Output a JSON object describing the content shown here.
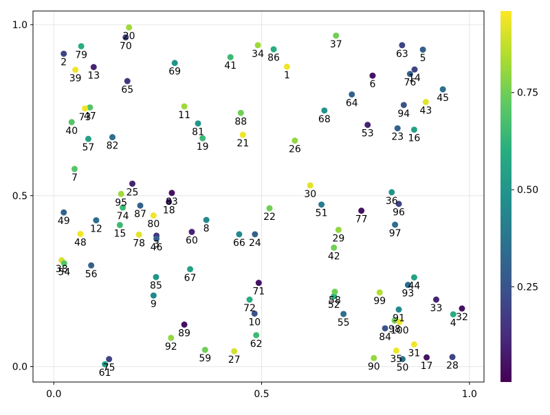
{
  "chart_data": {
    "type": "scatter",
    "title": "",
    "xlabel": "",
    "ylabel": "",
    "xlim": [
      -0.05,
      1.035
    ],
    "ylim": [
      -0.045,
      1.04
    ],
    "xticks": [
      {
        "value": 0.0,
        "label": "0.0"
      },
      {
        "value": 0.5,
        "label": "0.5"
      },
      {
        "value": 1.0,
        "label": "1.0"
      }
    ],
    "yticks": [
      {
        "value": 0.0,
        "label": "0.0"
      },
      {
        "value": 0.5,
        "label": "0.5"
      },
      {
        "value": 1.0,
        "label": "1.0"
      }
    ],
    "grid": true,
    "colormap": "viridis",
    "colorbar": {
      "range": [
        0.005,
        0.96
      ],
      "ticks": [
        {
          "value": 0.25,
          "label": "0.25"
        },
        {
          "value": 0.5,
          "label": "0.50"
        },
        {
          "value": 0.75,
          "label": "0.75"
        }
      ]
    },
    "points": [
      {
        "label": "1",
        "x": 0.561,
        "y": 0.877,
        "c": 0.94
      },
      {
        "label": "2",
        "x": 0.024,
        "y": 0.915,
        "c": 0.2
      },
      {
        "label": "3",
        "x": 0.247,
        "y": 0.383,
        "c": 0.15
      },
      {
        "label": "4",
        "x": 0.961,
        "y": 0.153,
        "c": 0.6
      },
      {
        "label": "5",
        "x": 0.888,
        "y": 0.927,
        "c": 0.3
      },
      {
        "label": "6",
        "x": 0.767,
        "y": 0.851,
        "c": 0.05
      },
      {
        "label": "7",
        "x": 0.05,
        "y": 0.578,
        "c": 0.7
      },
      {
        "label": "8",
        "x": 0.367,
        "y": 0.429,
        "c": 0.45
      },
      {
        "label": "9",
        "x": 0.24,
        "y": 0.208,
        "c": 0.45
      },
      {
        "label": "10",
        "x": 0.483,
        "y": 0.155,
        "c": 0.25
      },
      {
        "label": "11",
        "x": 0.314,
        "y": 0.761,
        "c": 0.82
      },
      {
        "label": "12",
        "x": 0.102,
        "y": 0.428,
        "c": 0.35
      },
      {
        "label": "13",
        "x": 0.096,
        "y": 0.876,
        "c": 0.1
      },
      {
        "label": "14",
        "x": 0.868,
        "y": 0.869,
        "c": 0.2
      },
      {
        "label": "15",
        "x": 0.159,
        "y": 0.414,
        "c": 0.65
      },
      {
        "label": "16",
        "x": 0.867,
        "y": 0.693,
        "c": 0.55
      },
      {
        "label": "17",
        "x": 0.897,
        "y": 0.027,
        "c": 0.05
      },
      {
        "label": "18",
        "x": 0.277,
        "y": 0.482,
        "c": 0.1
      },
      {
        "label": "19",
        "x": 0.358,
        "y": 0.668,
        "c": 0.65
      },
      {
        "label": "20",
        "x": 0.181,
        "y": 0.992,
        "c": 0.82
      },
      {
        "label": "21",
        "x": 0.455,
        "y": 0.678,
        "c": 0.94
      },
      {
        "label": "22",
        "x": 0.519,
        "y": 0.463,
        "c": 0.75
      },
      {
        "label": "23",
        "x": 0.827,
        "y": 0.697,
        "c": 0.3
      },
      {
        "label": "24",
        "x": 0.484,
        "y": 0.387,
        "c": 0.3
      },
      {
        "label": "25",
        "x": 0.189,
        "y": 0.535,
        "c": 0.1
      },
      {
        "label": "26",
        "x": 0.58,
        "y": 0.661,
        "c": 0.8
      },
      {
        "label": "27",
        "x": 0.434,
        "y": 0.045,
        "c": 0.9
      },
      {
        "label": "28",
        "x": 0.959,
        "y": 0.028,
        "c": 0.2
      },
      {
        "label": "29",
        "x": 0.685,
        "y": 0.4,
        "c": 0.8
      },
      {
        "label": "30",
        "x": 0.617,
        "y": 0.53,
        "c": 0.92
      },
      {
        "label": "31",
        "x": 0.867,
        "y": 0.065,
        "c": 0.94
      },
      {
        "label": "32",
        "x": 0.982,
        "y": 0.17,
        "c": 0.05
      },
      {
        "label": "33",
        "x": 0.92,
        "y": 0.196,
        "c": 0.1
      },
      {
        "label": "34",
        "x": 0.491,
        "y": 0.94,
        "c": 0.82
      },
      {
        "label": "35",
        "x": 0.824,
        "y": 0.047,
        "c": 0.94
      },
      {
        "label": "36",
        "x": 0.813,
        "y": 0.51,
        "c": 0.5
      },
      {
        "label": "37",
        "x": 0.679,
        "y": 0.968,
        "c": 0.75
      },
      {
        "label": "38",
        "x": 0.019,
        "y": 0.311,
        "c": 0.9
      },
      {
        "label": "39",
        "x": 0.052,
        "y": 0.868,
        "c": 0.94
      },
      {
        "label": "40",
        "x": 0.043,
        "y": 0.715,
        "c": 0.7
      },
      {
        "label": "41",
        "x": 0.425,
        "y": 0.905,
        "c": 0.65
      },
      {
        "label": "42",
        "x": 0.674,
        "y": 0.348,
        "c": 0.75
      },
      {
        "label": "43",
        "x": 0.895,
        "y": 0.774,
        "c": 0.92
      },
      {
        "label": "44",
        "x": 0.867,
        "y": 0.261,
        "c": 0.55
      },
      {
        "label": "45",
        "x": 0.936,
        "y": 0.811,
        "c": 0.35
      },
      {
        "label": "46",
        "x": 0.247,
        "y": 0.374,
        "c": 0.3
      },
      {
        "label": "47",
        "x": 0.087,
        "y": 0.758,
        "c": 0.7
      },
      {
        "label": "48",
        "x": 0.064,
        "y": 0.388,
        "c": 0.94
      },
      {
        "label": "49",
        "x": 0.024,
        "y": 0.451,
        "c": 0.3
      },
      {
        "label": "50",
        "x": 0.839,
        "y": 0.022,
        "c": 0.35
      },
      {
        "label": "51",
        "x": 0.644,
        "y": 0.474,
        "c": 0.4
      },
      {
        "label": "52",
        "x": 0.674,
        "y": 0.206,
        "c": 0.6
      },
      {
        "label": "53",
        "x": 0.755,
        "y": 0.707,
        "c": 0.1
      },
      {
        "label": "54",
        "x": 0.025,
        "y": 0.302,
        "c": 0.7
      },
      {
        "label": "55",
        "x": 0.697,
        "y": 0.154,
        "c": 0.35
      },
      {
        "label": "56",
        "x": 0.09,
        "y": 0.296,
        "c": 0.3
      },
      {
        "label": "57",
        "x": 0.083,
        "y": 0.666,
        "c": 0.55
      },
      {
        "label": "58",
        "x": 0.676,
        "y": 0.219,
        "c": 0.75
      },
      {
        "label": "59",
        "x": 0.364,
        "y": 0.049,
        "c": 0.75
      },
      {
        "label": "60",
        "x": 0.332,
        "y": 0.394,
        "c": 0.1
      },
      {
        "label": "61",
        "x": 0.123,
        "y": 0.007,
        "c": 0.55
      },
      {
        "label": "62",
        "x": 0.487,
        "y": 0.092,
        "c": 0.65
      },
      {
        "label": "63",
        "x": 0.838,
        "y": 0.94,
        "c": 0.2
      },
      {
        "label": "64",
        "x": 0.717,
        "y": 0.796,
        "c": 0.3
      },
      {
        "label": "65",
        "x": 0.177,
        "y": 0.835,
        "c": 0.15
      },
      {
        "label": "66",
        "x": 0.446,
        "y": 0.387,
        "c": 0.45
      },
      {
        "label": "67",
        "x": 0.328,
        "y": 0.285,
        "c": 0.55
      },
      {
        "label": "68",
        "x": 0.651,
        "y": 0.749,
        "c": 0.5
      },
      {
        "label": "69",
        "x": 0.291,
        "y": 0.888,
        "c": 0.5
      },
      {
        "label": "70",
        "x": 0.173,
        "y": 0.963,
        "c": 0.2
      },
      {
        "label": "71",
        "x": 0.493,
        "y": 0.245,
        "c": 0.05
      },
      {
        "label": "72",
        "x": 0.471,
        "y": 0.196,
        "c": 0.6
      },
      {
        "label": "73",
        "x": 0.075,
        "y": 0.755,
        "c": 0.94
      },
      {
        "label": "74",
        "x": 0.166,
        "y": 0.465,
        "c": 0.65
      },
      {
        "label": "75",
        "x": 0.133,
        "y": 0.022,
        "c": 0.2
      },
      {
        "label": "76",
        "x": 0.857,
        "y": 0.856,
        "c": 0.3
      },
      {
        "label": "77",
        "x": 0.74,
        "y": 0.456,
        "c": 0.05
      },
      {
        "label": "78",
        "x": 0.205,
        "y": 0.386,
        "c": 0.92
      },
      {
        "label": "79",
        "x": 0.066,
        "y": 0.937,
        "c": 0.6
      },
      {
        "label": "80",
        "x": 0.24,
        "y": 0.442,
        "c": 0.94
      },
      {
        "label": "81",
        "x": 0.347,
        "y": 0.711,
        "c": 0.5
      },
      {
        "label": "82",
        "x": 0.141,
        "y": 0.671,
        "c": 0.35
      },
      {
        "label": "83",
        "x": 0.284,
        "y": 0.508,
        "c": 0.05
      },
      {
        "label": "84",
        "x": 0.797,
        "y": 0.112,
        "c": 0.25
      },
      {
        "label": "85",
        "x": 0.246,
        "y": 0.262,
        "c": 0.5
      },
      {
        "label": "86",
        "x": 0.529,
        "y": 0.928,
        "c": 0.6
      },
      {
        "label": "87",
        "x": 0.208,
        "y": 0.471,
        "c": 0.3
      },
      {
        "label": "88",
        "x": 0.45,
        "y": 0.742,
        "c": 0.75
      },
      {
        "label": "89",
        "x": 0.314,
        "y": 0.123,
        "c": 0.05
      },
      {
        "label": "90",
        "x": 0.77,
        "y": 0.025,
        "c": 0.8
      },
      {
        "label": "91",
        "x": 0.83,
        "y": 0.167,
        "c": 0.45
      },
      {
        "label": "92",
        "x": 0.282,
        "y": 0.084,
        "c": 0.8
      },
      {
        "label": "93",
        "x": 0.852,
        "y": 0.239,
        "c": 0.35
      },
      {
        "label": "94",
        "x": 0.842,
        "y": 0.765,
        "c": 0.25
      },
      {
        "label": "95",
        "x": 0.162,
        "y": 0.505,
        "c": 0.82
      },
      {
        "label": "96",
        "x": 0.83,
        "y": 0.476,
        "c": 0.2
      },
      {
        "label": "97",
        "x": 0.821,
        "y": 0.415,
        "c": 0.35
      },
      {
        "label": "98",
        "x": 0.82,
        "y": 0.135,
        "c": 0.75
      },
      {
        "label": "99",
        "x": 0.784,
        "y": 0.217,
        "c": 0.85
      },
      {
        "label": "100",
        "x": 0.832,
        "y": 0.131,
        "c": 0.94
      }
    ]
  }
}
